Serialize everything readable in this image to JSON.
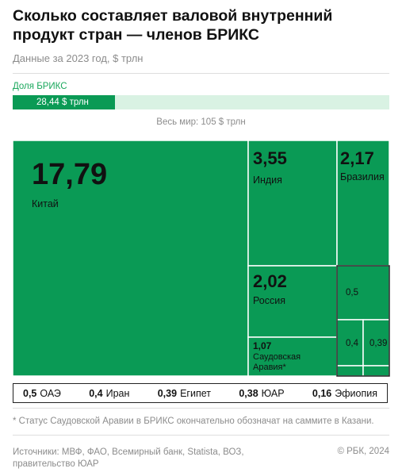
{
  "header": {
    "title": "Сколько составляет валовой внутренний продукт стран — членов БРИКС",
    "subtitle": "Данные за 2023 год, $ трлн"
  },
  "share": {
    "label": "Доля БРИКС",
    "value_text": "28,44 $ трлн",
    "fraction": 0.2709,
    "world_text": "Весь мир: 105 $ трлн"
  },
  "legend": [
    {
      "value": "0,5",
      "name": "ОАЭ"
    },
    {
      "value": "0,4",
      "name": "Иран"
    },
    {
      "value": "0,39",
      "name": "Египет"
    },
    {
      "value": "0,38",
      "name": "ЮАР"
    },
    {
      "value": "0,16",
      "name": "Эфиопия"
    }
  ],
  "footnote": "* Статус Саудовской Аравии в БРИКС окончательно обозначат на саммите в Казани.",
  "sources": "Источники: МВФ, ФАО, Всемирный банк, Statista, ВОЗ, правительство ЮАР",
  "copyright": "© РБК, 2024",
  "colors": {
    "green": "#0a9a55",
    "light_green": "#d9f2e3",
    "border": "#222222"
  },
  "chart_data": {
    "type": "treemap",
    "unit": "$ трлн",
    "items": [
      {
        "name": "Китай",
        "value": 17.79,
        "label": "17,79"
      },
      {
        "name": "Индия",
        "value": 3.55,
        "label": "3,55"
      },
      {
        "name": "Бразилия",
        "value": 2.17,
        "label": "2,17"
      },
      {
        "name": "Россия",
        "value": 2.02,
        "label": "2,02"
      },
      {
        "name": "Саудовская Аравия*",
        "value": 1.07,
        "label": "1,07"
      },
      {
        "name": "ОАЭ",
        "value": 0.5,
        "label": "0,5"
      },
      {
        "name": "Иран",
        "value": 0.4,
        "label": "0,4"
      },
      {
        "name": "Египет",
        "value": 0.39,
        "label": "0,39"
      },
      {
        "name": "ЮАР",
        "value": 0.38,
        "label": ""
      },
      {
        "name": "Эфиопия",
        "value": 0.16,
        "label": ""
      }
    ]
  }
}
